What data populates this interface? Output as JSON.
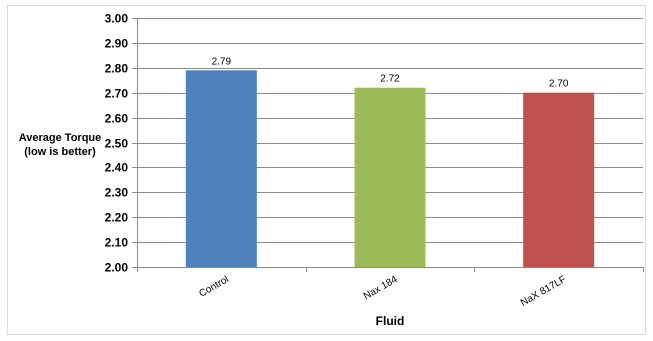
{
  "chart_data": {
    "type": "bar",
    "categories": [
      "Control",
      "Nax 184",
      "NaX 817LF"
    ],
    "values": [
      2.79,
      2.72,
      2.7
    ],
    "data_labels": [
      "2.79",
      "2.72",
      "2.70"
    ],
    "bar_colors": [
      "#4f81bd",
      "#9bbb59",
      "#c0504d"
    ],
    "ylabel_lines": [
      "Average Torque",
      "(low is better)"
    ],
    "xlabel": "Fluid",
    "ylim": [
      2.0,
      3.0
    ],
    "ytick_step": 0.1,
    "ytick_labels": [
      "2.00",
      "2.10",
      "2.20",
      "2.30",
      "2.40",
      "2.50",
      "2.60",
      "2.70",
      "2.80",
      "2.90",
      "3.00"
    ],
    "grid": true,
    "legend": "none"
  }
}
